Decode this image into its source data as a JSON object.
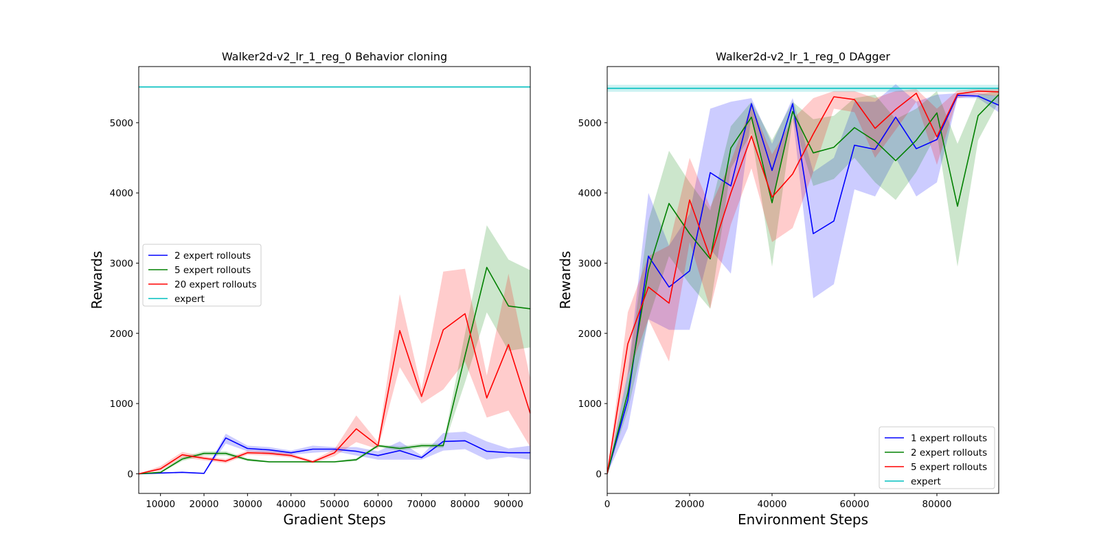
{
  "chart_data": [
    {
      "type": "line",
      "title": "Walker2d-v2_lr_1_reg_0 Behavior cloning",
      "xlabel": "Gradient Steps",
      "ylabel": "Rewards",
      "xlim": [
        5000,
        95000
      ],
      "ylim": [
        -280,
        5800
      ],
      "xticks": [
        10000,
        20000,
        30000,
        40000,
        50000,
        60000,
        70000,
        80000,
        90000
      ],
      "yticks": [
        0,
        1000,
        2000,
        3000,
        4000,
        5000
      ],
      "legend_position": "center-left",
      "grid": false,
      "x": [
        5000,
        10000,
        15000,
        20000,
        25000,
        30000,
        35000,
        40000,
        45000,
        50000,
        55000,
        60000,
        65000,
        70000,
        75000,
        80000,
        85000,
        90000,
        95000
      ],
      "series": [
        {
          "name": "2 expert rollouts",
          "color": "#0000ff",
          "values": [
            0,
            10,
            20,
            5,
            510,
            360,
            340,
            300,
            350,
            350,
            320,
            260,
            330,
            230,
            460,
            470,
            320,
            300,
            300
          ],
          "lower": [
            0,
            0,
            10,
            0,
            430,
            320,
            300,
            270,
            300,
            320,
            260,
            200,
            200,
            200,
            330,
            350,
            200,
            240,
            200
          ],
          "upper": [
            0,
            20,
            30,
            10,
            570,
            400,
            380,
            330,
            400,
            380,
            380,
            320,
            460,
            260,
            580,
            600,
            460,
            360,
            400
          ]
        },
        {
          "name": "5 expert rollouts",
          "color": "#008000",
          "values": [
            0,
            20,
            210,
            290,
            290,
            200,
            170,
            170,
            170,
            170,
            200,
            400,
            360,
            400,
            400,
            1680,
            2940,
            2390,
            2350
          ],
          "lower": [
            0,
            10,
            180,
            260,
            260,
            180,
            160,
            160,
            160,
            160,
            180,
            380,
            330,
            370,
            370,
            1300,
            2300,
            1750,
            1800
          ],
          "upper": [
            0,
            30,
            240,
            320,
            320,
            220,
            180,
            180,
            180,
            180,
            220,
            420,
            390,
            430,
            430,
            2000,
            3540,
            3050,
            2900
          ]
        },
        {
          "name": "20 expert rollouts",
          "color": "#ff0000",
          "values": [
            0,
            70,
            270,
            220,
            180,
            300,
            290,
            260,
            170,
            300,
            640,
            400,
            2040,
            1100,
            2050,
            2280,
            1080,
            1840,
            860
          ],
          "lower": [
            0,
            40,
            230,
            190,
            150,
            270,
            260,
            230,
            150,
            250,
            450,
            350,
            1520,
            1000,
            1200,
            1600,
            800,
            900,
            380
          ],
          "upper": [
            0,
            110,
            310,
            250,
            210,
            330,
            320,
            290,
            190,
            350,
            830,
            450,
            2560,
            1200,
            2880,
            2920,
            1400,
            2850,
            1350
          ]
        },
        {
          "name": "expert",
          "color": "#00bfbf",
          "values": [
            5510,
            5510,
            5510,
            5510,
            5510,
            5510,
            5510,
            5510,
            5510,
            5510,
            5510,
            5510,
            5510,
            5510,
            5510,
            5510,
            5510,
            5510,
            5510
          ]
        }
      ]
    },
    {
      "type": "line",
      "title": "Walker2d-v2_lr_1_reg_0 DAgger",
      "xlabel": "Environment Steps",
      "ylabel": "Rewards",
      "xlim": [
        0,
        95000
      ],
      "ylim": [
        -280,
        5800
      ],
      "xticks": [
        0,
        20000,
        40000,
        60000,
        80000
      ],
      "yticks": [
        0,
        1000,
        2000,
        3000,
        4000,
        5000
      ],
      "legend_position": "lower-right",
      "grid": false,
      "x": [
        0,
        5000,
        10000,
        15000,
        20000,
        25000,
        30000,
        35000,
        40000,
        45000,
        50000,
        55000,
        60000,
        65000,
        70000,
        75000,
        80000,
        85000,
        90000,
        95000
      ],
      "series": [
        {
          "name": "1 expert rollouts",
          "color": "#0000ff",
          "values": [
            0,
            1050,
            3100,
            2660,
            2890,
            4290,
            4100,
            5270,
            4320,
            5270,
            3420,
            3600,
            4680,
            4620,
            5080,
            4630,
            4760,
            5390,
            5380,
            5250
          ],
          "lower": [
            0,
            650,
            2200,
            2050,
            2050,
            3200,
            2850,
            5100,
            3900,
            5100,
            2500,
            2700,
            4050,
            3950,
            4500,
            3950,
            4150,
            5350,
            5350,
            5150
          ],
          "upper": [
            0,
            1450,
            4000,
            3250,
            3700,
            5200,
            5300,
            5350,
            4700,
            5350,
            4300,
            4500,
            5300,
            5300,
            5550,
            5300,
            5400,
            5420,
            5420,
            5380
          ]
        },
        {
          "name": "2 expert rollouts",
          "color": "#008000",
          "values": [
            0,
            1150,
            2900,
            3850,
            3420,
            3060,
            4640,
            5080,
            3860,
            5160,
            4570,
            4650,
            4930,
            4740,
            4460,
            4750,
            5140,
            3810,
            5100,
            5400
          ],
          "lower": [
            0,
            900,
            2200,
            3100,
            2700,
            2350,
            4350,
            4850,
            2950,
            5050,
            4100,
            4200,
            4500,
            4150,
            3900,
            4300,
            4850,
            2950,
            4750,
            5300
          ],
          "upper": [
            0,
            1400,
            3600,
            4600,
            4150,
            3750,
            4950,
            5300,
            4750,
            5300,
            5050,
            5100,
            5350,
            5400,
            5050,
            5200,
            5450,
            4700,
            5400,
            5450
          ]
        },
        {
          "name": "5 expert rollouts",
          "color": "#ff0000",
          "values": [
            0,
            1850,
            2660,
            2430,
            3900,
            3080,
            4000,
            4810,
            3940,
            4270,
            4840,
            5370,
            5330,
            4920,
            5190,
            5420,
            4800,
            5410,
            5450,
            5440
          ],
          "lower": [
            0,
            1400,
            2200,
            1600,
            3300,
            2350,
            3550,
            4350,
            3300,
            3500,
            4300,
            5200,
            5150,
            4500,
            4900,
            5300,
            4400,
            5350,
            5400,
            5380
          ],
          "upper": [
            0,
            2300,
            3100,
            3250,
            4500,
            3800,
            4450,
            5250,
            4550,
            5050,
            5350,
            5450,
            5450,
            5350,
            5450,
            5480,
            5200,
            5460,
            5480,
            5480
          ]
        },
        {
          "name": "expert",
          "color": "#00bfbf",
          "values": [
            5490,
            5490,
            5490,
            5490,
            5490,
            5490,
            5490,
            5490,
            5490,
            5490,
            5490,
            5490,
            5490,
            5490,
            5490,
            5490,
            5490,
            5490,
            5490,
            5490
          ],
          "lower": [
            5440,
            5440,
            5440,
            5440,
            5440,
            5440,
            5440,
            5440,
            5440,
            5440,
            5440,
            5440,
            5440,
            5440,
            5440,
            5440,
            5440,
            5440,
            5440,
            5440
          ],
          "upper": [
            5540,
            5540,
            5540,
            5540,
            5540,
            5540,
            5540,
            5540,
            5540,
            5540,
            5540,
            5540,
            5540,
            5540,
            5540,
            5540,
            5540,
            5540,
            5540,
            5540
          ]
        }
      ]
    }
  ]
}
